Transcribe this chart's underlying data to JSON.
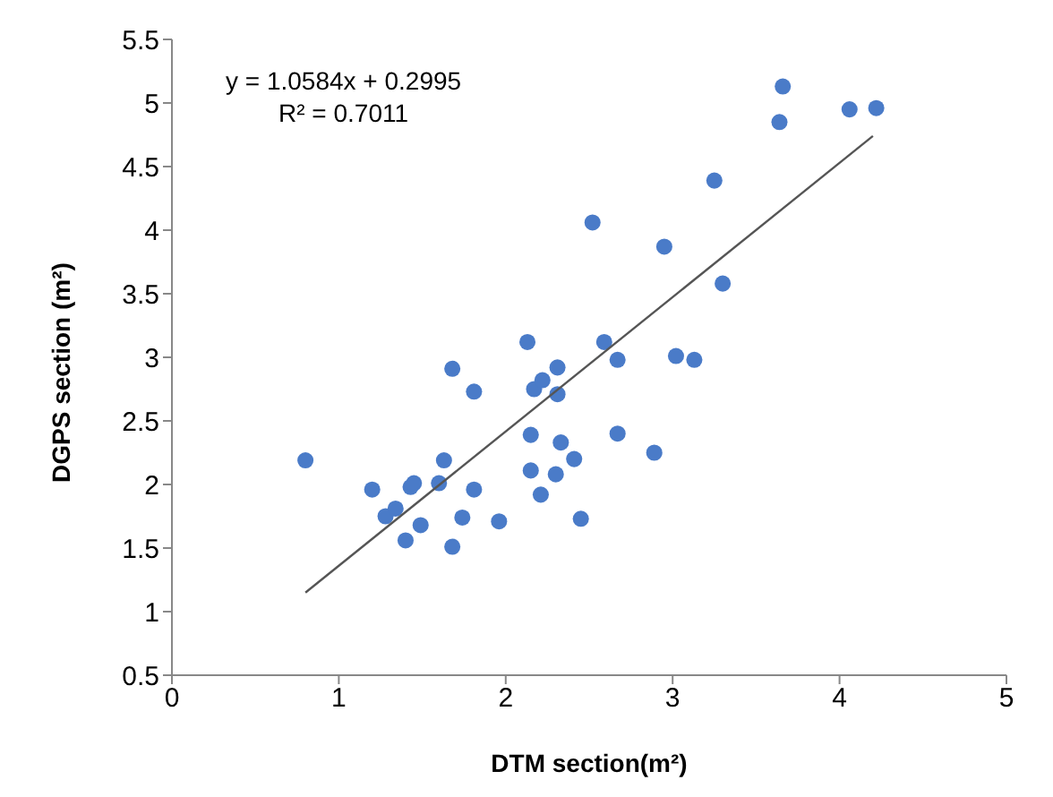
{
  "chart_data": {
    "type": "scatter",
    "xlabel": "DTM section(m²)",
    "ylabel": "DGPS  section (m²)",
    "annotations": [
      "y = 1.0584x + 0.2995",
      "R² = 0.7011"
    ],
    "xlim": [
      0,
      5
    ],
    "xticks": [
      0,
      1,
      2,
      3,
      4,
      5
    ],
    "ylim": [
      0.5,
      5.5
    ],
    "yticks": [
      0.5,
      1,
      1.5,
      2,
      2.5,
      3,
      3.5,
      4,
      4.5,
      5,
      5.5
    ],
    "grid": false,
    "legend": false,
    "series": [
      {
        "marker": "circle",
        "color": "#4a7bc8",
        "x": [
          0.8,
          1.2,
          1.28,
          1.34,
          1.4,
          1.43,
          1.45,
          1.49,
          1.6,
          1.63,
          1.68,
          1.68,
          1.74,
          1.81,
          1.81,
          1.96,
          2.13,
          2.15,
          2.15,
          2.17,
          2.22,
          2.21,
          2.31,
          2.31,
          2.33,
          2.3,
          2.59,
          2.67,
          3.02,
          3.13,
          2.41,
          2.67,
          2.89,
          2.45,
          3.66,
          3.64,
          4.06,
          4.22,
          3.25,
          2.52,
          2.95,
          3.3
        ],
        "values": [
          2.19,
          1.96,
          1.75,
          1.81,
          1.56,
          1.98,
          2.01,
          1.68,
          2.01,
          2.19,
          2.91,
          1.51,
          1.74,
          2.73,
          1.96,
          1.71,
          3.12,
          2.39,
          2.11,
          2.75,
          2.82,
          1.92,
          2.92,
          2.71,
          2.33,
          2.08,
          3.12,
          2.98,
          3.01,
          2.98,
          2.2,
          2.4,
          2.25,
          1.73,
          5.13,
          4.85,
          4.95,
          4.96,
          4.39,
          4.06,
          3.87,
          3.58
        ]
      },
      {
        "type": "line",
        "color": "#555555",
        "x": [
          0.8,
          4.2
        ],
        "values": [
          1.15,
          4.74
        ]
      }
    ]
  }
}
